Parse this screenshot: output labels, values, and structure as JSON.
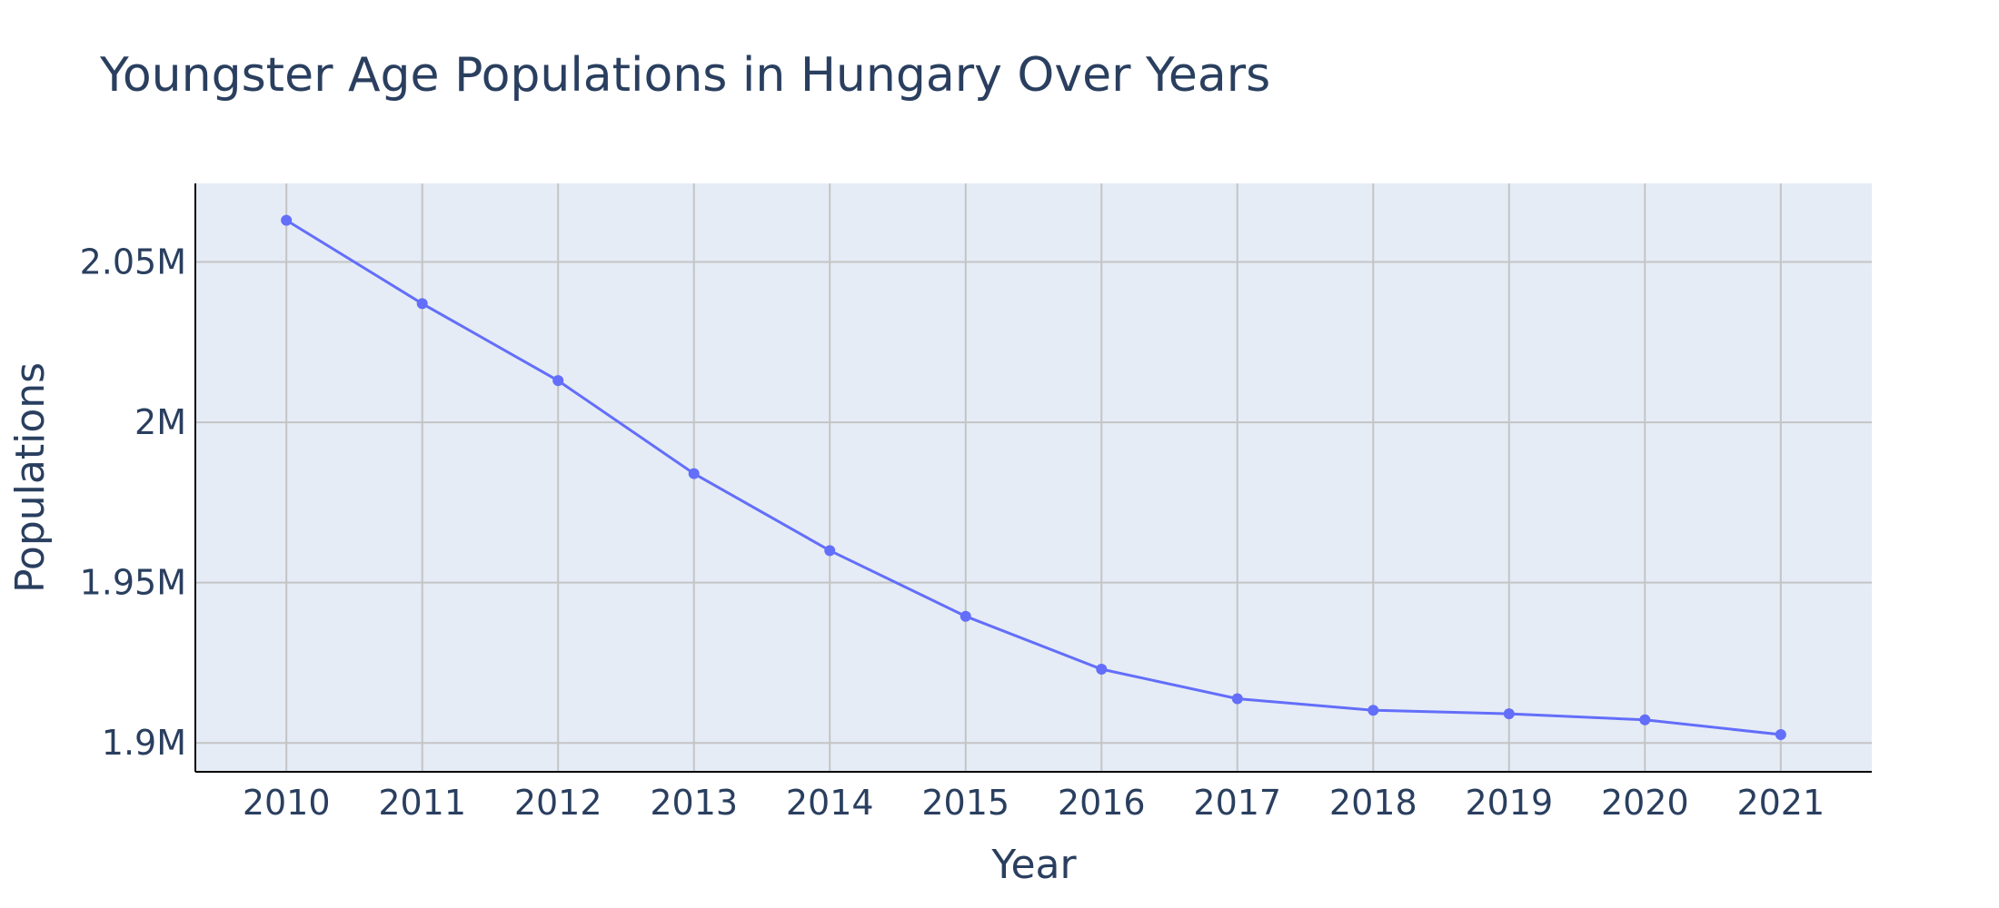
{
  "chart_data": {
    "type": "line",
    "title": "Youngster Age Populations in Hungary Over Years",
    "xlabel": "Year",
    "ylabel": "Populations",
    "x": [
      2010,
      2011,
      2012,
      2013,
      2014,
      2015,
      2016,
      2017,
      2018,
      2019,
      2020,
      2021
    ],
    "x_tick_labels": [
      "2010",
      "2011",
      "2012",
      "2013",
      "2014",
      "2015",
      "2016",
      "2017",
      "2018",
      "2019",
      "2020",
      "2021"
    ],
    "series": [
      {
        "values": [
          2063000,
          2037000,
          2013000,
          1984000,
          1960000,
          1939500,
          1923000,
          1913800,
          1910200,
          1909100,
          1907200,
          1902600
        ],
        "color": "#636efa"
      }
    ],
    "y_ticks": [
      1900000,
      1950000,
      2000000,
      2050000
    ],
    "y_tick_labels": [
      "1.9M",
      "1.95M",
      "2M",
      "2.05M"
    ],
    "xlim": [
      2009.33,
      2021.67
    ],
    "ylim": [
      1891000,
      2074500
    ],
    "grid": true,
    "plot_bgcolor": "#e5ecf6",
    "grid_color": "#c4c4c4",
    "axis_color": "#000000"
  }
}
